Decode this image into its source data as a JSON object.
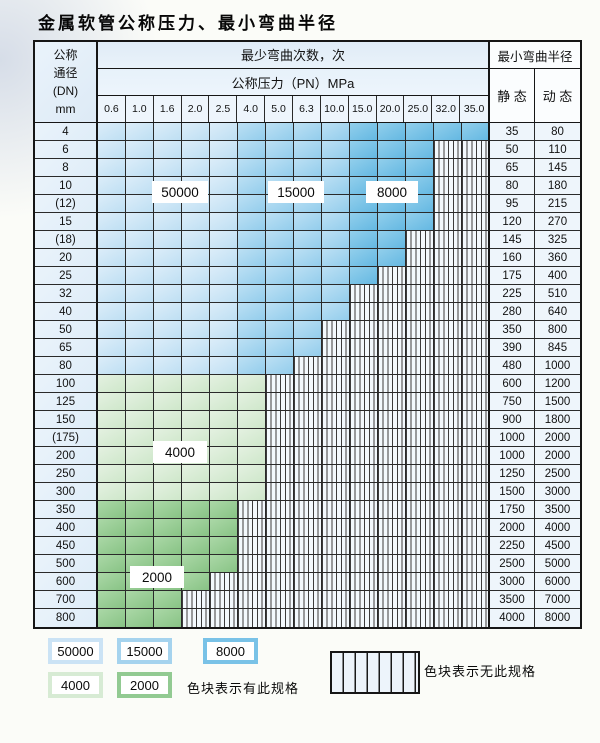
{
  "title": "金属软管公称压力、最小弯曲半径",
  "table": {
    "corner_lines": [
      "公称",
      "通径",
      "(DN)",
      "mm"
    ],
    "bend_cycles_header": "最少弯曲次数，次",
    "pressure_header": "公称压力（PN）MPa",
    "radius_header": "最小弯曲半径",
    "static_label": "静 态",
    "dynamic_label": "动 态",
    "pressures": [
      "0.6",
      "1.0",
      "1.6",
      "2.0",
      "2.5",
      "4.0",
      "5.0",
      "6.3",
      "10.0",
      "15.0",
      "20.0",
      "25.0",
      "32.0",
      "35.0"
    ],
    "blue_regions": [
      {
        "label": "50000",
        "first_col": "0.6",
        "last_col": "2.5"
      },
      {
        "label": "15000",
        "first_col": "4.0",
        "last_col": "10.0"
      },
      {
        "label": "8000",
        "first_col": "15.0",
        "last_col": "35.0"
      }
    ],
    "rows": [
      {
        "dn": "4",
        "colored": 14,
        "band": "blue",
        "static": "35",
        "dynamic": "80"
      },
      {
        "dn": "6",
        "colored": 12,
        "band": "blue",
        "static": "50",
        "dynamic": "110"
      },
      {
        "dn": "8",
        "colored": 12,
        "band": "blue",
        "static": "65",
        "dynamic": "145"
      },
      {
        "dn": "10",
        "colored": 12,
        "band": "blue",
        "static": "80",
        "dynamic": "180"
      },
      {
        "dn": "(12)",
        "colored": 12,
        "band": "blue",
        "static": "95",
        "dynamic": "215"
      },
      {
        "dn": "15",
        "colored": 12,
        "band": "blue",
        "static": "120",
        "dynamic": "270"
      },
      {
        "dn": "(18)",
        "colored": 11,
        "band": "blue",
        "static": "145",
        "dynamic": "325"
      },
      {
        "dn": "20",
        "colored": 11,
        "band": "blue",
        "static": "160",
        "dynamic": "360"
      },
      {
        "dn": "25",
        "colored": 10,
        "band": "blue",
        "static": "175",
        "dynamic": "400"
      },
      {
        "dn": "32",
        "colored": 9,
        "band": "blue",
        "static": "225",
        "dynamic": "510"
      },
      {
        "dn": "40",
        "colored": 9,
        "band": "blue",
        "static": "280",
        "dynamic": "640"
      },
      {
        "dn": "50",
        "colored": 8,
        "band": "blue",
        "static": "350",
        "dynamic": "800"
      },
      {
        "dn": "65",
        "colored": 8,
        "band": "blue",
        "static": "390",
        "dynamic": "845"
      },
      {
        "dn": "80",
        "colored": 7,
        "band": "blue",
        "static": "480",
        "dynamic": "1000"
      },
      {
        "dn": "100",
        "colored": 6,
        "band": "green-4000",
        "static": "600",
        "dynamic": "1200"
      },
      {
        "dn": "125",
        "colored": 6,
        "band": "green-4000",
        "static": "750",
        "dynamic": "1500"
      },
      {
        "dn": "150",
        "colored": 6,
        "band": "green-4000",
        "static": "900",
        "dynamic": "1800"
      },
      {
        "dn": "(175)",
        "colored": 6,
        "band": "green-4000",
        "static": "1000",
        "dynamic": "2000"
      },
      {
        "dn": "200",
        "colored": 6,
        "band": "green-4000",
        "static": "1000",
        "dynamic": "2000"
      },
      {
        "dn": "250",
        "colored": 6,
        "band": "green-4000",
        "static": "1250",
        "dynamic": "2500"
      },
      {
        "dn": "300",
        "colored": 6,
        "band": "green-4000",
        "static": "1500",
        "dynamic": "3000"
      },
      {
        "dn": "350",
        "colored": 5,
        "band": "green-2000",
        "static": "1750",
        "dynamic": "3500"
      },
      {
        "dn": "400",
        "colored": 5,
        "band": "green-2000",
        "static": "2000",
        "dynamic": "4000"
      },
      {
        "dn": "450",
        "colored": 5,
        "band": "green-2000",
        "static": "2250",
        "dynamic": "4500"
      },
      {
        "dn": "500",
        "colored": 5,
        "band": "green-2000",
        "static": "2500",
        "dynamic": "5000"
      },
      {
        "dn": "600",
        "colored": 4,
        "band": "green-2000",
        "static": "3000",
        "dynamic": "6000"
      },
      {
        "dn": "700",
        "colored": 3,
        "band": "green-2000",
        "static": "3500",
        "dynamic": "7000"
      },
      {
        "dn": "800",
        "colored": 3,
        "band": "green-2000",
        "static": "4000",
        "dynamic": "8000"
      }
    ]
  },
  "region_labels": [
    "50000",
    "15000",
    "8000",
    "4000",
    "2000"
  ],
  "legend": {
    "items": [
      {
        "value": "50000",
        "color": "#cbe3f5"
      },
      {
        "value": "15000",
        "color": "#a5d3ee"
      },
      {
        "value": "8000",
        "color": "#79c2e7"
      },
      {
        "value": "4000",
        "color": "#d7ebd4"
      },
      {
        "value": "2000",
        "color": "#92ca92"
      }
    ],
    "has_spec_text": "色块表示有此规格",
    "no_spec_text": "色块表示无此规格"
  },
  "colors": {
    "blue_50000": "#cbe3f5",
    "blue_15000": "#a5d3ee",
    "blue_8000": "#79c2e7",
    "green_4000": "#d7ebd4",
    "green_2000": "#92ca92",
    "grid_line": "#2a2a2a",
    "header_bg": "#e7f1fa"
  }
}
